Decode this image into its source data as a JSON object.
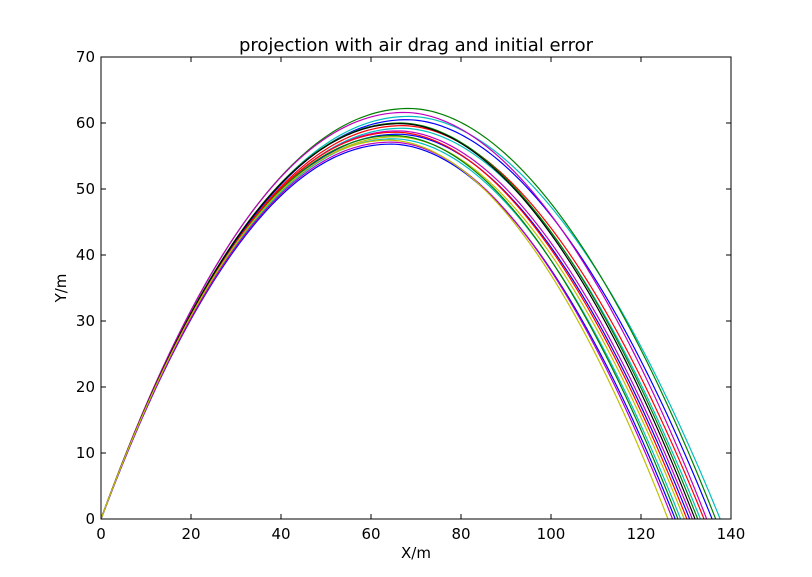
{
  "chart_data": {
    "type": "line",
    "title": "projection with air drag and initial error",
    "xlabel": "X/m",
    "ylabel": "Y/m",
    "xlim": [
      0,
      140
    ],
    "ylim": [
      0,
      70
    ],
    "xticks": [
      0,
      20,
      40,
      60,
      80,
      100,
      120,
      140
    ],
    "yticks": [
      0,
      10,
      20,
      30,
      40,
      50,
      60,
      70
    ],
    "xtick_labels": [
      "0",
      "20",
      "40",
      "60",
      "80",
      "100",
      "120",
      "140"
    ],
    "ytick_labels": [
      "0",
      "10",
      "20",
      "30",
      "40",
      "50",
      "60",
      "70"
    ],
    "grid": false,
    "legend": "none",
    "series": [
      {
        "color": "#00bfbf",
        "apex_x": 68.5,
        "apex_y": 61.0,
        "range": 137.6
      },
      {
        "color": "#008000",
        "apex_x": 68.5,
        "apex_y": 62.2,
        "range": 136.6
      },
      {
        "color": "#0000ff",
        "apex_x": 68.0,
        "apex_y": 60.5,
        "range": 135.8
      },
      {
        "color": "#bf00bf",
        "apex_x": 67.5,
        "apex_y": 61.6,
        "range": 134.6
      },
      {
        "color": "#ff0000",
        "apex_x": 67.0,
        "apex_y": 59.6,
        "range": 134.0
      },
      {
        "color": "#00bfbf",
        "apex_x": 67.0,
        "apex_y": 59.2,
        "range": 133.2
      },
      {
        "color": "#008000",
        "apex_x": 66.5,
        "apex_y": 60.0,
        "range": 132.6
      },
      {
        "color": "#000000",
        "apex_x": 66.5,
        "apex_y": 59.9,
        "range": 132.0
      },
      {
        "color": "#bf00bf",
        "apex_x": 66.0,
        "apex_y": 58.8,
        "range": 131.4
      },
      {
        "color": "#0000ff",
        "apex_x": 66.0,
        "apex_y": 58.3,
        "range": 130.8
      },
      {
        "color": "#ff0000",
        "apex_x": 65.5,
        "apex_y": 58.6,
        "range": 130.2
      },
      {
        "color": "#bfbf00",
        "apex_x": 65.5,
        "apex_y": 57.9,
        "range": 129.6
      },
      {
        "color": "#00bfbf",
        "apex_x": 65.0,
        "apex_y": 57.6,
        "range": 128.8
      },
      {
        "color": "#008000",
        "apex_x": 65.0,
        "apex_y": 58.1,
        "range": 128.2
      },
      {
        "color": "#0000ff",
        "apex_x": 64.5,
        "apex_y": 56.8,
        "range": 127.6
      },
      {
        "color": "#bf00bf",
        "apex_x": 64.5,
        "apex_y": 57.1,
        "range": 127.0
      },
      {
        "color": "#bfbf00",
        "apex_x": 64.0,
        "apex_y": 57.4,
        "range": 126.0
      }
    ]
  }
}
